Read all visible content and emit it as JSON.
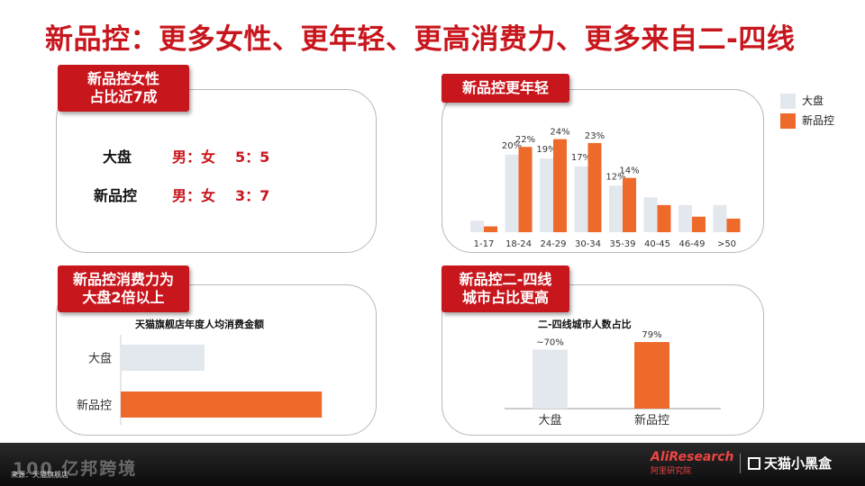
{
  "title": "新品控：更多女性、更年轻、更高消费力、更多来自二-四线",
  "colors": {
    "brand_red": "#c8161d",
    "bar_grey": "#e3e7ee",
    "bar_orange": "#ee6a2a"
  },
  "panel1": {
    "tag": "新品控女性\n占比近7成",
    "rows": [
      {
        "name": "大盘",
        "gender": "男：女",
        "ratio": "5：5"
      },
      {
        "name": "新品控",
        "gender": "男：女",
        "ratio": "3：7"
      }
    ]
  },
  "panel2": {
    "tag": "新品控更年轻"
  },
  "panel3": {
    "tag": "新品控消费力为\n大盘2倍以上",
    "caption": "天猫旗舰店年度人均消费金额"
  },
  "panel4": {
    "tag": "新品控二-四线\n城市占比更高",
    "caption": "二-四线城市人数占比"
  },
  "legend": {
    "items": [
      "大盘",
      "新品控"
    ]
  },
  "chart_data": [
    {
      "type": "bar",
      "categories": [
        "1-17",
        "18-24",
        "24-29",
        "30-34",
        "35-39",
        "40-45",
        "46-49",
        ">50"
      ],
      "series": [
        {
          "name": "大盘",
          "values": [
            3,
            20,
            19,
            17,
            12,
            9,
            7,
            7
          ],
          "labels": [
            "",
            "20%",
            "19%",
            "17%",
            "12%",
            "",
            "",
            ""
          ]
        },
        {
          "name": "新品控",
          "values": [
            1.5,
            22,
            24,
            23,
            14,
            7,
            4,
            3.5
          ],
          "labels": [
            "",
            "22%",
            "24%",
            "23%",
            "14%",
            "",
            "",
            ""
          ]
        }
      ],
      "ylim": [
        0,
        26
      ]
    },
    {
      "type": "bar",
      "orientation": "horizontal",
      "title": "天猫旗舰店年度人均消费金额",
      "categories": [
        "大盘",
        "新品控"
      ],
      "values": [
        1,
        2.4
      ]
    },
    {
      "type": "bar",
      "title": "二-四线城市人数占比",
      "categories": [
        "大盘",
        "新品控"
      ],
      "values": [
        70,
        79
      ],
      "labels": [
        "~70%",
        "79%"
      ],
      "ylim": [
        0,
        90
      ]
    }
  ],
  "footer": {
    "source": "来源：天猫旗舰店",
    "watermark": "100 亿邦跨境",
    "logo_alires": "AliResearch",
    "logo_alires_sub": "阿里研究院",
    "logo_tmall": "天猫小黑盒"
  }
}
